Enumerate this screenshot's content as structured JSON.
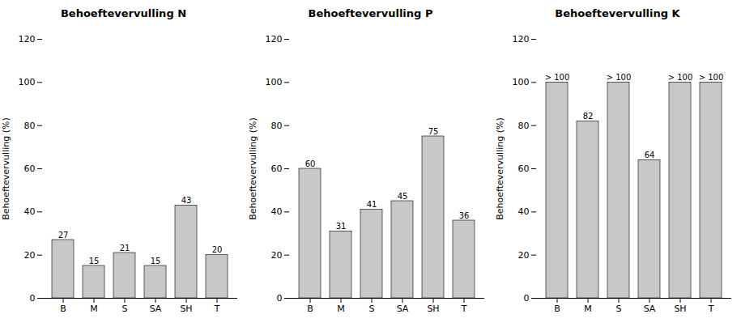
{
  "chart_data": [
    {
      "type": "bar",
      "title": "Behoeftevervulling N",
      "categories": [
        "B",
        "M",
        "S",
        "SA",
        "SH",
        "T"
      ],
      "values": [
        27,
        15,
        21,
        15,
        43,
        20
      ],
      "color": "#c8c8c8",
      "ylabel": "Behoeftevervulling (%)",
      "ylim": [
        0,
        120
      ],
      "yticks": [
        0,
        20,
        40,
        60,
        80,
        100,
        120
      ],
      "grid": false,
      "data_labels": true
    },
    {
      "type": "bar",
      "title": "Behoeftevervulling P",
      "categories": [
        "B",
        "M",
        "S",
        "SA",
        "SH",
        "T"
      ],
      "values": [
        60,
        31,
        41,
        45,
        75,
        36
      ],
      "color": "#c8c8c8",
      "ylabel": "Behoeftevervulling (%)",
      "ylim": [
        0,
        120
      ],
      "yticks": [
        0,
        20,
        40,
        60,
        80,
        100,
        120
      ],
      "grid": false,
      "data_labels": true
    },
    {
      "type": "bar",
      "title": "Behoeftevervulling K",
      "categories": [
        "B",
        "M",
        "S",
        "SA",
        "SH",
        "T"
      ],
      "values": [
        100,
        82,
        100,
        64,
        100,
        100
      ],
      "value_labels": [
        "> 100",
        "82",
        "> 100",
        "64",
        "> 100",
        "> 100"
      ],
      "color": "#c8c8c8",
      "ylabel": "Behoeftevervulling (%)",
      "ylim": [
        0,
        120
      ],
      "yticks": [
        0,
        20,
        40,
        60,
        80,
        100,
        120
      ],
      "grid": false,
      "data_labels": true
    }
  ]
}
